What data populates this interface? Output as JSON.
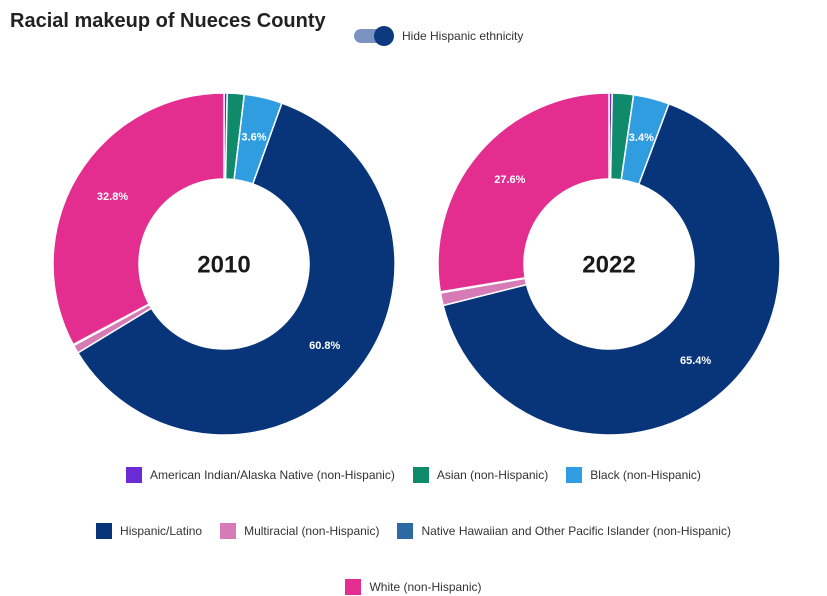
{
  "title": "Racial makeup of Nueces County",
  "toggle": {
    "label": "Hide Hispanic ethnicity",
    "on": true
  },
  "colors": {
    "american_indian": "#6a2bd4",
    "asian": "#0f8a6b",
    "black": "#2f9de0",
    "hispanic": "#08347a",
    "multiracial": "#d67bb6",
    "hawaiian": "#2d6aa3",
    "white": "#e42e8f"
  },
  "legend": [
    {
      "key": "american_indian",
      "label": "American Indian/Alaska Native (non-Hispanic)"
    },
    {
      "key": "asian",
      "label": "Asian (non-Hispanic)"
    },
    {
      "key": "black",
      "label": "Black (non-Hispanic)"
    },
    {
      "key": "hispanic",
      "label": "Hispanic/Latino"
    },
    {
      "key": "multiracial",
      "label": "Multiracial (non-Hispanic)"
    },
    {
      "key": "hawaiian",
      "label": "Native Hawaiian and Other Pacific Islander (non-Hispanic)"
    },
    {
      "key": "white",
      "label": "White (non-Hispanic)"
    }
  ],
  "chart_data": [
    {
      "type": "pie",
      "title": "2010",
      "slices": [
        {
          "key": "american_indian",
          "name": "American Indian/Alaska Native (non-Hispanic)",
          "value": 0.3,
          "label": ""
        },
        {
          "key": "asian",
          "name": "Asian (non-Hispanic)",
          "value": 1.6,
          "label": ""
        },
        {
          "key": "black",
          "name": "Black (non-Hispanic)",
          "value": 3.6,
          "label": "3.6%"
        },
        {
          "key": "hispanic",
          "name": "Hispanic/Latino",
          "value": 60.8,
          "label": "60.8%"
        },
        {
          "key": "multiracial",
          "name": "Multiracial (non-Hispanic)",
          "value": 0.8,
          "label": ""
        },
        {
          "key": "hawaiian",
          "name": "Native Hawaiian and Other Pacific Islander (non-Hispanic)",
          "value": 0.1,
          "label": ""
        },
        {
          "key": "white",
          "name": "White (non-Hispanic)",
          "value": 32.8,
          "label": "32.8%"
        }
      ]
    },
    {
      "type": "pie",
      "title": "2022",
      "slices": [
        {
          "key": "american_indian",
          "name": "American Indian/Alaska Native (non-Hispanic)",
          "value": 0.3,
          "label": ""
        },
        {
          "key": "asian",
          "name": "Asian (non-Hispanic)",
          "value": 2.0,
          "label": ""
        },
        {
          "key": "black",
          "name": "Black (non-Hispanic)",
          "value": 3.4,
          "label": "3.4%"
        },
        {
          "key": "hispanic",
          "name": "Hispanic/Latino",
          "value": 65.4,
          "label": "65.4%"
        },
        {
          "key": "multiracial",
          "name": "Multiracial (non-Hispanic)",
          "value": 1.2,
          "label": ""
        },
        {
          "key": "hawaiian",
          "name": "Native Hawaiian and Other Pacific Islander (non-Hispanic)",
          "value": 0.1,
          "label": ""
        },
        {
          "key": "white",
          "name": "White (non-Hispanic)",
          "value": 27.6,
          "label": "27.6%"
        }
      ]
    }
  ]
}
